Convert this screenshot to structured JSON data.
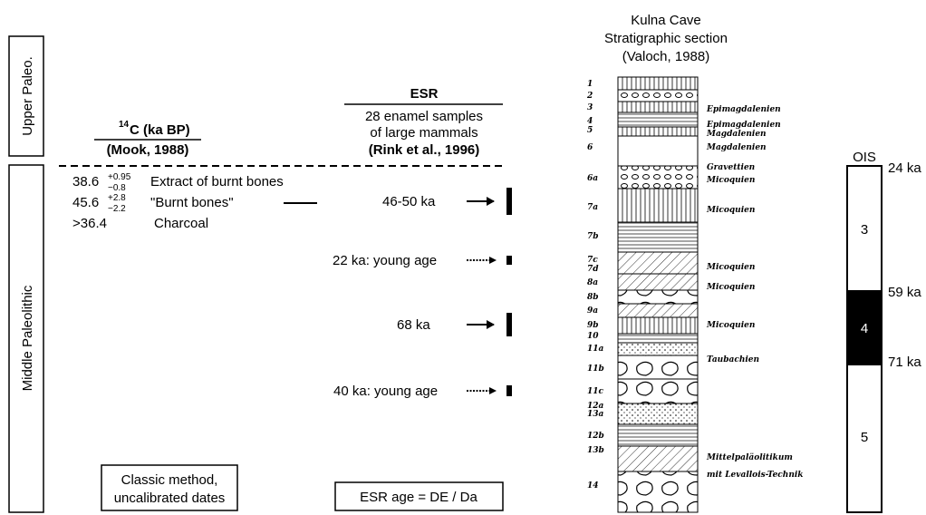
{
  "periods": {
    "upper": "Upper Paleo.",
    "middle": "Middle Paleolithic"
  },
  "c14": {
    "header_sup": "14",
    "header": "C (ka BP)",
    "source": "(Mook, 1988)",
    "dates": [
      {
        "value": "38.6",
        "plus": "+0.95",
        "minus": "−0.8",
        "label": "Extract of burnt bones"
      },
      {
        "value": "45.6",
        "plus": "+2.8",
        "minus": "−2.2",
        "label": "\"Burnt bones\""
      },
      {
        "value": ">36.4",
        "label": "Charcoal"
      }
    ]
  },
  "esr": {
    "title": "ESR",
    "lines": [
      "28 enamel samples",
      "of large mammals",
      "(Rink et al., 1996)"
    ],
    "ages": [
      "46-50 ka",
      "22 ka: young age",
      "68 ka",
      "40 ka: young age"
    ]
  },
  "notes": {
    "classic": [
      "Classic method,",
      "uncalibrated dates"
    ],
    "esr": "ESR age = DE / Da"
  },
  "section": {
    "title": [
      "Kulna Cave",
      "Stratigraphic section",
      "(Valoch, 1988)"
    ],
    "layers": [
      "1",
      "2",
      "3",
      "4",
      "5",
      "6",
      "6a",
      "7a",
      "7b",
      "7c",
      "7d",
      "8a",
      "8b",
      "9a",
      "9b",
      "10",
      "11a",
      "11b",
      "11c",
      "12a",
      "13a",
      "12b",
      "13b",
      "14"
    ],
    "cultures": [
      "Epimagdalenien",
      "Epimagdalenien",
      "Magdalenien",
      "Magdalenien",
      "Gravettien",
      "Micoquien",
      "Micoquien",
      "Micoquien",
      "Micoquien",
      "Micoquien",
      "Taubachien",
      "Mittelpaläolitikum",
      "mit Levallois-Technik"
    ]
  },
  "ois": {
    "title": "OIS",
    "stages": [
      "3",
      "4",
      "5"
    ],
    "ages": [
      "24 ka",
      "59 ka",
      "71 ka"
    ]
  }
}
